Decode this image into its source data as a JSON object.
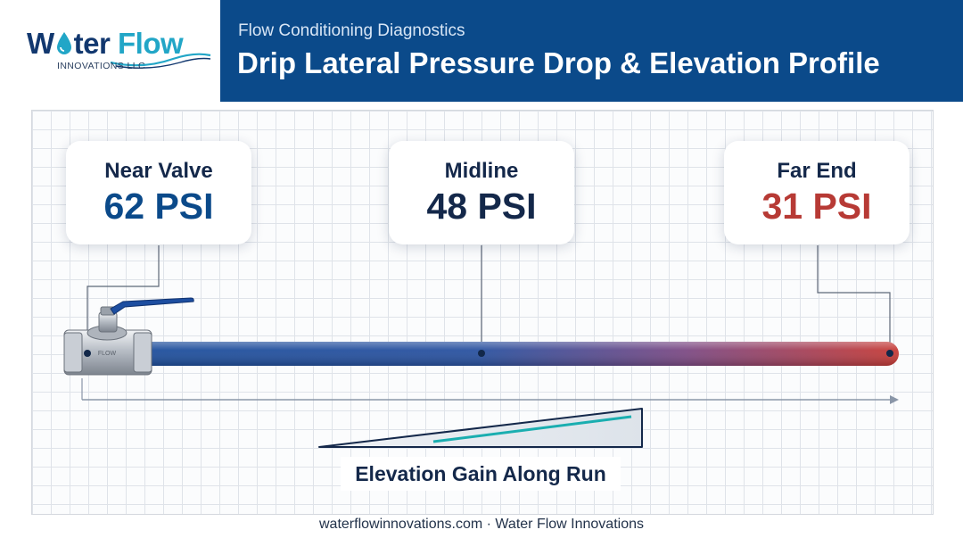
{
  "logo": {
    "word_1": "W",
    "drop": "a",
    "word_2": "ter",
    "word_3": "Flow",
    "sub": "INNOVATIONS LLC"
  },
  "header": {
    "subtitle": "Flow Conditioning Diagnostics",
    "title": "Drip Lateral Pressure Drop & Elevation Profile"
  },
  "callouts": [
    {
      "label": "Near Valve",
      "value": "62 PSI"
    },
    {
      "label": "Midline",
      "value": "48 PSI"
    },
    {
      "label": "Far End",
      "value": "31 PSI"
    }
  ],
  "valve": {
    "marking": "FLOW"
  },
  "elevation": {
    "label": "Elevation Gain Along Run"
  },
  "colors": {
    "header_band": "#0b4a8a",
    "pipe_start": "#1e4f9c",
    "pipe_end": "#c63b36",
    "near_value": "#0b4a8a",
    "far_value": "#b73a35",
    "slope_line": "#1aaeb0"
  },
  "footer": {
    "text": "waterflowinnovations.com · Water Flow Innovations"
  }
}
